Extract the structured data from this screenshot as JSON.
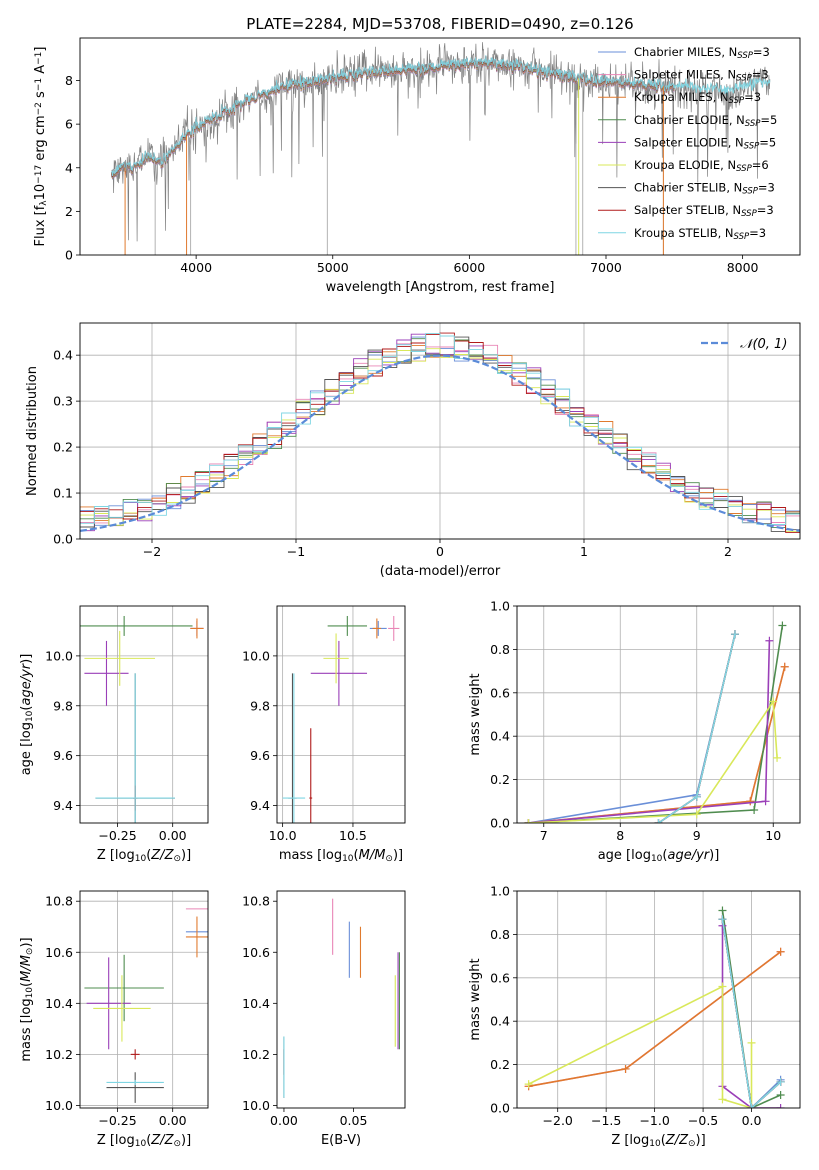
{
  "figure": {
    "title": "PLATE=2284, MJD=53708, FIBERID=0490, z=0.126"
  },
  "chart_data": [
    {
      "id": "spectrum",
      "type": "line",
      "xlabel": "wavelength [Angstrom, rest frame]",
      "ylabel": "Flux [f$_\\lambda$10$^{-17}$ erg cm$^{-2}$ s$^{-1}$ A$^{-1}$]",
      "ylabel_parts": [
        "Flux [f",
        "λ",
        "10",
        "−17",
        " erg cm",
        "−2",
        " s",
        "−1",
        " A",
        "−1",
        "]"
      ],
      "xlim": [
        3150,
        8420
      ],
      "ylim": [
        0,
        9.95
      ],
      "xticks": [
        4000,
        5000,
        6000,
        7000,
        8000
      ],
      "yticks": [
        0,
        2,
        4,
        6,
        8
      ],
      "grid": false,
      "legend_loc": "right",
      "legend": [
        {
          "base": "Chabrier MILES, N",
          "sub": "SSP",
          "tail": "=3",
          "color": "#6a8fd8"
        },
        {
          "base": "Salpeter MILES, N",
          "sub": "SSP",
          "tail": "=3",
          "color": "#e986b6"
        },
        {
          "base": "Kroupa MILES, N",
          "sub": "SSP",
          "tail": "=3",
          "color": "#e07a2e"
        },
        {
          "base": "Chabrier ELODIE, N",
          "sub": "SSP",
          "tail": "=5",
          "color": "#4f8c4f"
        },
        {
          "base": "Salpeter ELODIE, N",
          "sub": "SSP",
          "tail": "=5",
          "color": "#9a3fb8"
        },
        {
          "base": "Kroupa ELODIE, N",
          "sub": "SSP",
          "tail": "=6",
          "color": "#d9e85a"
        },
        {
          "base": "Chabrier STELIB, N",
          "sub": "SSP",
          "tail": "=3",
          "color": "#555555"
        },
        {
          "base": "Salpeter STELIB, N",
          "sub": "SSP",
          "tail": "=3",
          "color": "#b01a1a"
        },
        {
          "base": "Kroupa STELIB, N",
          "sub": "SSP",
          "tail": "=3",
          "color": "#7fd6e3"
        }
      ],
      "envelope": {
        "x": [
          3380,
          3450,
          3550,
          3650,
          3750,
          3850,
          3950,
          4100,
          4300,
          4500,
          4700,
          5000,
          5300,
          5600,
          5900,
          6100,
          6300,
          6500,
          6700,
          6900,
          7100,
          7300,
          7500,
          7700,
          7900,
          8100,
          8200
        ],
        "y": [
          3.7,
          4.0,
          4.0,
          4.5,
          4.2,
          5.0,
          5.6,
          6.2,
          6.8,
          7.4,
          7.8,
          8.1,
          8.4,
          8.5,
          8.7,
          8.8,
          8.7,
          8.5,
          8.2,
          8.0,
          7.9,
          7.8,
          7.7,
          7.6,
          7.5,
          7.8,
          7.8
        ]
      }
    },
    {
      "id": "residuals",
      "type": "step",
      "xlabel": "(data-model)/error",
      "ylabel": "Normed distribution",
      "xlim": [
        -2.5,
        2.5
      ],
      "ylim": [
        0,
        0.47
      ],
      "xticks": [
        -2,
        -1,
        0,
        1,
        2
      ],
      "xtick_labels": [
        "−2",
        "−1",
        "0",
        "1",
        "2"
      ],
      "yticks": [
        0.0,
        0.1,
        0.2,
        0.3,
        0.4
      ],
      "ytick_labels": [
        "0.0",
        "0.1",
        "0.2",
        "0.3",
        "0.4"
      ],
      "grid": true,
      "legend": [
        {
          "label": "𝒩(0, 1)",
          "color": "#5b8bd8"
        }
      ],
      "bin_width": 0.1
    },
    {
      "id": "age_vs_Z",
      "type": "errorbar",
      "xlabel": "Z [log$_{10}$(Z/Z$_\\odot$)]",
      "ylabel": "age  [log$_{10}$(age/yr)]",
      "xlim": [
        -0.42,
        0.16
      ],
      "ylim": [
        9.33,
        10.2
      ],
      "xticks": [
        -0.25,
        0.0
      ],
      "xtick_labels": [
        "−0.25",
        "0.00"
      ],
      "yticks": [
        9.4,
        9.6,
        9.8,
        10.0
      ],
      "ytick_labels": [
        "9.4",
        "9.6",
        "9.8",
        "10.0"
      ],
      "grid": true,
      "points": [
        {
          "x": 0.11,
          "y": 10.11,
          "xerr": 0.03,
          "yerr": 0.03,
          "color": "#6a8fd8"
        },
        {
          "x": 0.11,
          "y": 10.11,
          "xerr": 0.03,
          "yerr": 0.03,
          "color": "#e986b6"
        },
        {
          "x": 0.11,
          "y": 10.11,
          "xerr": 0.03,
          "yerr": 0.04,
          "color": "#e07a2e"
        },
        {
          "x": -0.22,
          "y": 10.12,
          "xerr": 0.31,
          "yerr": 0.04,
          "color": "#4f8c4f"
        },
        {
          "x": -0.3,
          "y": 9.93,
          "xerr": 0.1,
          "yerr": 0.13,
          "color": "#9a3fb8"
        },
        {
          "x": -0.24,
          "y": 9.99,
          "xerr": 0.16,
          "yerr": 0.11,
          "color": "#d9e85a"
        },
        {
          "x": -0.17,
          "y": 9.43,
          "xerr": 0.18,
          "yerr": 0.5,
          "color": "#555555"
        },
        {
          "x": -0.17,
          "y": 9.43,
          "xerr": 0.01,
          "yerr": 0.05,
          "color": "#b01a1a"
        },
        {
          "x": -0.17,
          "y": 9.43,
          "xerr": 0.18,
          "yerr": 0.5,
          "color": "#7fd6e3"
        }
      ]
    },
    {
      "id": "age_vs_mass",
      "type": "errorbar",
      "xlabel": "mass [log$_{10}$(M/M$_\\odot$)]",
      "ylabel": "",
      "xlim": [
        9.96,
        10.87
      ],
      "ylim": [
        9.33,
        10.2
      ],
      "xticks": [
        10.0,
        10.5
      ],
      "xtick_labels": [
        "10.0",
        "10.5"
      ],
      "yticks": [
        9.4,
        9.6,
        9.8,
        10.0
      ],
      "ytick_labels": [
        "9.4",
        "9.6",
        "9.8",
        "10.0"
      ],
      "grid": true,
      "points": [
        {
          "x": 10.68,
          "y": 10.11,
          "xerr": 0.06,
          "yerr": 0.03,
          "color": "#6a8fd8"
        },
        {
          "x": 10.79,
          "y": 10.11,
          "xerr": 0.04,
          "yerr": 0.05,
          "color": "#e986b6"
        },
        {
          "x": 10.67,
          "y": 10.11,
          "xerr": 0.03,
          "yerr": 0.04,
          "color": "#e07a2e"
        },
        {
          "x": 10.46,
          "y": 10.12,
          "xerr": 0.14,
          "yerr": 0.04,
          "color": "#4f8c4f"
        },
        {
          "x": 10.4,
          "y": 9.93,
          "xerr": 0.2,
          "yerr": 0.13,
          "color": "#9a3fb8"
        },
        {
          "x": 10.38,
          "y": 9.99,
          "xerr": 0.09,
          "yerr": 0.1,
          "color": "#d9e85a"
        },
        {
          "x": 10.07,
          "y": 9.43,
          "xerr": 0.03,
          "yerr": 0.5,
          "color": "#555555"
        },
        {
          "x": 10.2,
          "y": 9.43,
          "xerr": 0.01,
          "yerr": 0.28,
          "color": "#b01a1a"
        },
        {
          "x": 10.08,
          "y": 9.43,
          "xerr": 0.08,
          "yerr": 0.5,
          "color": "#7fd6e3"
        }
      ]
    },
    {
      "id": "weight_vs_age",
      "type": "line",
      "xlabel": "age  [log$_{10}$(age/yr)]",
      "ylabel": "mass weight",
      "xlim": [
        6.65,
        10.35
      ],
      "ylim": [
        0.0,
        1.0
      ],
      "xticks": [
        7,
        8,
        9,
        10
      ],
      "xtick_labels": [
        "7",
        "8",
        "9",
        "10"
      ],
      "yticks": [
        0.0,
        0.2,
        0.4,
        0.6,
        0.8,
        1.0
      ],
      "ytick_labels": [
        "0.0",
        "0.2",
        "0.4",
        "0.6",
        "0.8",
        "1.0"
      ],
      "grid": true,
      "series": [
        {
          "color": "#6a8fd8",
          "x": [
            6.8,
            9.0,
            9.5
          ],
          "y": [
            0.0,
            0.13,
            0.87
          ]
        },
        {
          "color": "#e986b6",
          "x": [
            6.8,
            9.7,
            10.15
          ],
          "y": [
            0.0,
            0.1,
            0.72
          ]
        },
        {
          "color": "#e07a2e",
          "x": [
            6.8,
            9.7,
            10.15
          ],
          "y": [
            0.0,
            0.1,
            0.72
          ]
        },
        {
          "color": "#4f8c4f",
          "x": [
            6.8,
            9.75,
            10.12
          ],
          "y": [
            0.0,
            0.06,
            0.91
          ]
        },
        {
          "color": "#9a3fb8",
          "x": [
            6.8,
            9.9,
            9.95
          ],
          "y": [
            0.0,
            0.1,
            0.84
          ]
        },
        {
          "color": "#d9e85a",
          "x": [
            6.8,
            9.0,
            10.0,
            10.05
          ],
          "y": [
            0.0,
            0.04,
            0.56,
            0.3
          ]
        },
        {
          "color": "#555555",
          "x": [
            8.5,
            9.0,
            9.5
          ],
          "y": [
            0.0,
            0.12,
            0.87
          ]
        },
        {
          "color": "#b01a1a",
          "x": [
            8.5,
            9.0,
            9.5
          ],
          "y": [
            0.0,
            0.12,
            0.87
          ]
        },
        {
          "color": "#7fd6e3",
          "x": [
            8.5,
            9.0,
            9.5
          ],
          "y": [
            0.0,
            0.12,
            0.87
          ]
        }
      ]
    },
    {
      "id": "mass_vs_Z",
      "type": "errorbar",
      "xlabel": "Z [log$_{10}$(Z/Z$_\\odot$)]",
      "ylabel": "mass [log$_{10}$(M/M$_\\odot$)]",
      "xlim": [
        -0.42,
        0.16
      ],
      "ylim": [
        9.99,
        10.84
      ],
      "xticks": [
        -0.25,
        0.0
      ],
      "xtick_labels": [
        "−0.25",
        "0.00"
      ],
      "yticks": [
        10.0,
        10.2,
        10.4,
        10.6,
        10.8
      ],
      "ytick_labels": [
        "10.0",
        "10.2",
        "10.4",
        "10.6",
        "10.8"
      ],
      "grid": true,
      "points": [
        {
          "x": 0.11,
          "y": 10.68,
          "xerr": 0.05,
          "yerr": 0.0,
          "color": "#6a8fd8"
        },
        {
          "x": 0.11,
          "y": 10.77,
          "xerr": 0.05,
          "yerr": 0.0,
          "color": "#e986b6"
        },
        {
          "x": 0.11,
          "y": 10.66,
          "xerr": 0.05,
          "yerr": 0.08,
          "color": "#e07a2e"
        },
        {
          "x": -0.22,
          "y": 10.46,
          "xerr": 0.18,
          "yerr": 0.13,
          "color": "#4f8c4f"
        },
        {
          "x": -0.29,
          "y": 10.4,
          "xerr": 0.1,
          "yerr": 0.18,
          "color": "#9a3fb8"
        },
        {
          "x": -0.23,
          "y": 10.38,
          "xerr": 0.13,
          "yerr": 0.13,
          "color": "#d9e85a"
        },
        {
          "x": -0.17,
          "y": 10.07,
          "xerr": 0.13,
          "yerr": 0.06,
          "color": "#555555"
        },
        {
          "x": -0.17,
          "y": 10.2,
          "xerr": 0.02,
          "yerr": 0.02,
          "color": "#b01a1a"
        },
        {
          "x": -0.17,
          "y": 10.09,
          "xerr": 0.13,
          "yerr": 0.01,
          "color": "#7fd6e3"
        }
      ]
    },
    {
      "id": "mass_vs_ebv",
      "type": "errorbar",
      "xlabel": "E(B-V)",
      "ylabel": "",
      "xlim": [
        -0.005,
        0.087
      ],
      "ylim": [
        9.99,
        10.84
      ],
      "xticks": [
        0.0,
        0.05
      ],
      "xtick_labels": [
        "0.00",
        "0.05"
      ],
      "yticks": [
        10.0,
        10.2,
        10.4,
        10.6,
        10.8
      ],
      "ytick_labels": [
        "10.0",
        "10.2",
        "10.4",
        "10.6",
        "10.8"
      ],
      "grid": false,
      "points": [
        {
          "x": 0.047,
          "y": 10.61,
          "xerr": 0.0,
          "yerr": 0.11,
          "color": "#6a8fd8"
        },
        {
          "x": 0.035,
          "y": 10.7,
          "xerr": 0.0,
          "yerr": 0.11,
          "color": "#e986b6"
        },
        {
          "x": 0.055,
          "y": 10.6,
          "xerr": 0.0,
          "yerr": 0.1,
          "color": "#e07a2e"
        },
        {
          "x": 0.083,
          "y": 10.41,
          "xerr": 0.0,
          "yerr": 0.19,
          "color": "#4f8c4f"
        },
        {
          "x": 0.082,
          "y": 10.41,
          "xerr": 0.0,
          "yerr": 0.19,
          "color": "#9a3fb8"
        },
        {
          "x": 0.08,
          "y": 10.37,
          "xerr": 0.0,
          "yerr": 0.14,
          "color": "#d9e85a"
        },
        {
          "x": 0.0,
          "y": 10.15,
          "xerr": 0.0,
          "yerr": 0.12,
          "color": "#555555"
        },
        {
          "x": 0.0,
          "y": 10.17,
          "xerr": 0.0,
          "yerr": 0.05,
          "color": "#b01a1a"
        },
        {
          "x": 0.0,
          "y": 10.15,
          "xerr": 0.0,
          "yerr": 0.12,
          "color": "#7fd6e3"
        }
      ]
    },
    {
      "id": "weight_vs_Z",
      "type": "line",
      "xlabel": "Z [log$_{10}$(Z/Z$_\\odot$)]",
      "ylabel": "mass weight",
      "xlim": [
        -2.42,
        0.5
      ],
      "ylim": [
        0.0,
        1.0
      ],
      "xticks": [
        -2.0,
        -1.5,
        -1.0,
        -0.5,
        0.0
      ],
      "xtick_labels": [
        "−2.0",
        "−1.5",
        "−1.0",
        "−0.5",
        "0.0"
      ],
      "yticks": [
        0.0,
        0.2,
        0.4,
        0.6,
        0.8,
        1.0
      ],
      "ytick_labels": [
        "0.0",
        "0.2",
        "0.4",
        "0.6",
        "0.8",
        "1.0"
      ],
      "grid": true,
      "series": [
        {
          "color": "#6a8fd8",
          "x": [
            -0.3,
            0.0,
            0.3
          ],
          "y": [
            0.87,
            0.0,
            0.13
          ]
        },
        {
          "color": "#e986b6",
          "x": [
            -2.3,
            -1.3,
            0.3
          ],
          "y": [
            0.1,
            0.18,
            0.72
          ]
        },
        {
          "color": "#e07a2e",
          "x": [
            -2.3,
            -1.3,
            0.3
          ],
          "y": [
            0.1,
            0.18,
            0.72
          ]
        },
        {
          "color": "#4f8c4f",
          "x": [
            -0.3,
            0.0,
            0.3
          ],
          "y": [
            0.91,
            0.0,
            0.06
          ]
        },
        {
          "color": "#9a3fb8",
          "x": [
            -0.3,
            -0.3,
            0.0,
            0.3
          ],
          "y": [
            0.84,
            0.1,
            0.0,
            0.0
          ]
        },
        {
          "color": "#d9e85a",
          "x": [
            -2.3,
            -0.3,
            -0.3,
            0.0,
            0.0
          ],
          "y": [
            0.11,
            0.56,
            0.04,
            0.0,
            0.3
          ]
        },
        {
          "color": "#555555",
          "x": [
            -0.3,
            0.0,
            0.3
          ],
          "y": [
            0.87,
            0.0,
            0.12
          ]
        },
        {
          "color": "#b01a1a",
          "x": [
            -0.3,
            0.0,
            0.3
          ],
          "y": [
            0.87,
            0.0,
            0.12
          ]
        },
        {
          "color": "#7fd6e3",
          "x": [
            -0.3,
            0.0,
            0.3
          ],
          "y": [
            0.87,
            0.0,
            0.12
          ]
        }
      ]
    }
  ]
}
